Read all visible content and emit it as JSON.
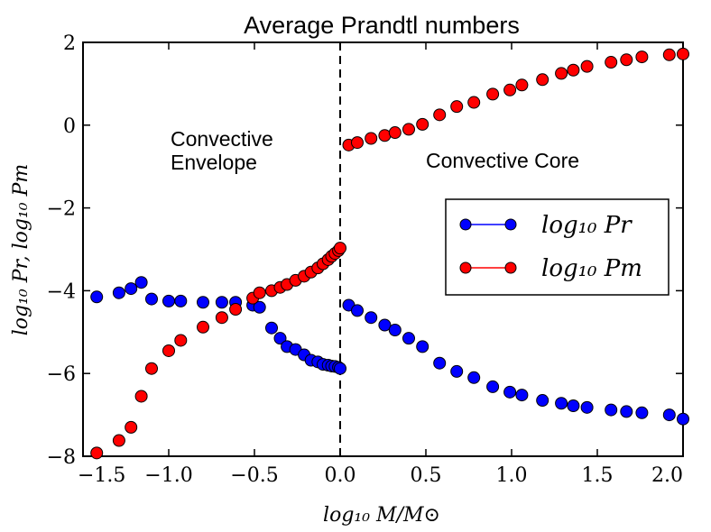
{
  "chart_data": {
    "type": "scatter",
    "title": "Average Prandtl numbers",
    "xlabel": "log₁₀ M/M⊙",
    "ylabel": "log₁₀ Pr, log₁₀ Pm",
    "xlim": [
      -1.5,
      2.0
    ],
    "ylim": [
      -8,
      2
    ],
    "xticks": [
      -1.5,
      -1.0,
      -0.5,
      0.0,
      0.5,
      1.0,
      1.5,
      2.0
    ],
    "xtick_labels": [
      "−1.5",
      "−1.0",
      "−0.5",
      "0.0",
      "0.5",
      "1.0",
      "1.5",
      "2.0"
    ],
    "yticks": [
      -8,
      -6,
      -4,
      -2,
      0,
      2
    ],
    "ytick_labels": [
      "−8",
      "−6",
      "−4",
      "−2",
      "0",
      "2"
    ],
    "divider_x": 0.0,
    "annotations": [
      {
        "text_lines": [
          "Convective",
          "Envelope"
        ]
      },
      {
        "text_lines": [
          "Convective Core"
        ]
      }
    ],
    "legend_position": "right",
    "series": [
      {
        "name": "log₁₀ Pr",
        "color": "#0000ff",
        "x": [
          -1.42,
          -1.29,
          -1.22,
          -1.16,
          -1.1,
          -1.0,
          -0.93,
          -0.8,
          -0.69,
          -0.61,
          -0.51,
          -0.47,
          -0.4,
          -0.35,
          -0.31,
          -0.26,
          -0.21,
          -0.17,
          -0.13,
          -0.1,
          -0.07,
          -0.05,
          -0.03,
          -0.01,
          0.0,
          0.05,
          0.1,
          0.18,
          0.26,
          0.32,
          0.4,
          0.48,
          0.58,
          0.68,
          0.78,
          0.89,
          0.99,
          1.06,
          1.18,
          1.29,
          1.36,
          1.44,
          1.58,
          1.67,
          1.76,
          1.92,
          2.0
        ],
        "y": [
          -4.15,
          -4.05,
          -3.95,
          -3.8,
          -4.2,
          -4.25,
          -4.25,
          -4.28,
          -4.28,
          -4.28,
          -4.35,
          -4.4,
          -4.9,
          -5.15,
          -5.35,
          -5.42,
          -5.55,
          -5.68,
          -5.72,
          -5.78,
          -5.8,
          -5.82,
          -5.83,
          -5.85,
          -5.88,
          -4.35,
          -4.48,
          -4.65,
          -4.83,
          -4.95,
          -5.15,
          -5.35,
          -5.75,
          -5.95,
          -6.1,
          -6.32,
          -6.45,
          -6.52,
          -6.65,
          -6.72,
          -6.78,
          -6.82,
          -6.88,
          -6.92,
          -6.95,
          -7.0,
          -7.1
        ]
      },
      {
        "name": "log₁₀ Pm",
        "color": "#ff0000",
        "x": [
          -1.42,
          -1.29,
          -1.22,
          -1.16,
          -1.1,
          -1.0,
          -0.93,
          -0.8,
          -0.69,
          -0.61,
          -0.51,
          -0.47,
          -0.4,
          -0.35,
          -0.31,
          -0.26,
          -0.21,
          -0.17,
          -0.13,
          -0.1,
          -0.07,
          -0.05,
          -0.03,
          -0.01,
          0.0,
          0.05,
          0.1,
          0.18,
          0.26,
          0.32,
          0.4,
          0.48,
          0.58,
          0.68,
          0.78,
          0.89,
          0.99,
          1.06,
          1.18,
          1.29,
          1.36,
          1.44,
          1.58,
          1.67,
          1.76,
          1.92,
          2.0
        ],
        "y": [
          -7.92,
          -7.62,
          -7.3,
          -6.55,
          -5.88,
          -5.45,
          -5.2,
          -4.88,
          -4.65,
          -4.45,
          -4.18,
          -4.05,
          -4.0,
          -3.92,
          -3.85,
          -3.75,
          -3.65,
          -3.55,
          -3.45,
          -3.35,
          -3.25,
          -3.17,
          -3.1,
          -3.03,
          -2.97,
          -0.48,
          -0.42,
          -0.32,
          -0.25,
          -0.18,
          -0.1,
          0.02,
          0.25,
          0.45,
          0.55,
          0.75,
          0.85,
          0.97,
          1.1,
          1.25,
          1.33,
          1.42,
          1.52,
          1.58,
          1.65,
          1.7,
          1.72
        ]
      }
    ]
  }
}
